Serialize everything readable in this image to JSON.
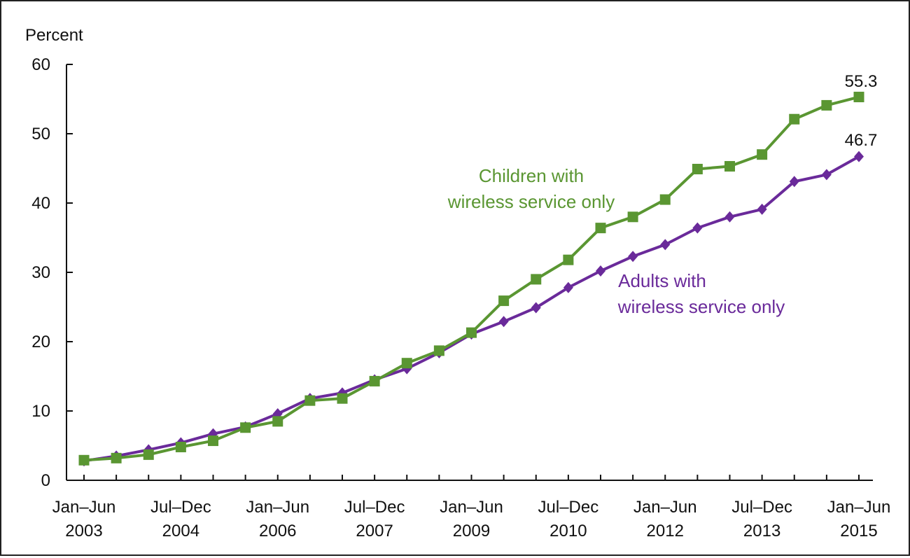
{
  "chart_data": {
    "type": "line",
    "ylabel": "Percent",
    "ylim": [
      0,
      60
    ],
    "yticks": [
      "0",
      "10",
      "20",
      "30",
      "40",
      "50",
      "60"
    ],
    "x_periods": [
      "Jan–Jun 2003",
      "Jul–Dec 2003",
      "Jan–Jun 2004",
      "Jul–Dec 2004",
      "Jan–Jun 2005",
      "Jul–Dec 2005",
      "Jan–Jun 2006",
      "Jul–Dec 2006",
      "Jan–Jun 2007",
      "Jul–Dec 2007",
      "Jan–Jun 2008",
      "Jul–Dec 2008",
      "Jan–Jun 2009",
      "Jul–Dec 2009",
      "Jan–Jun 2010",
      "Jul–Dec 2010",
      "Jan–Jun 2011",
      "Jul–Dec 2011",
      "Jan–Jun 2012",
      "Jul–Dec 2012",
      "Jan–Jun 2013",
      "Jul–Dec 2013",
      "Jan–Jun 2014",
      "Jul–Dec 2014",
      "Jan–Jun 2015"
    ],
    "x_tick_labels": [
      {
        "index": 0,
        "line1": "Jan–Jun",
        "line2": "2003"
      },
      {
        "index": 3,
        "line1": "Jul–Dec",
        "line2": "2004"
      },
      {
        "index": 6,
        "line1": "Jan–Jun",
        "line2": "2006"
      },
      {
        "index": 9,
        "line1": "Jul–Dec",
        "line2": "2007"
      },
      {
        "index": 12,
        "line1": "Jan–Jun",
        "line2": "2009"
      },
      {
        "index": 15,
        "line1": "Jul–Dec",
        "line2": "2010"
      },
      {
        "index": 18,
        "line1": "Jan–Jun",
        "line2": "2012"
      },
      {
        "index": 21,
        "line1": "Jul–Dec",
        "line2": "2013"
      },
      {
        "index": 24,
        "line1": "Jan–Jun",
        "line2": "2015"
      }
    ],
    "series": [
      {
        "name": "Children with wireless service only",
        "label_lines": [
          "Children with",
          "wireless service only"
        ],
        "color": "#5a9632",
        "marker": "square",
        "values": [
          2.9,
          3.2,
          3.7,
          4.8,
          5.7,
          7.6,
          8.5,
          11.5,
          11.8,
          14.3,
          16.9,
          18.7,
          21.3,
          25.9,
          29.0,
          31.8,
          36.4,
          38.0,
          40.5,
          44.9,
          45.3,
          47.0,
          52.1,
          54.1,
          55.3
        ],
        "end_label": "55.3"
      },
      {
        "name": "Adults with wireless service only",
        "label_lines": [
          "Adults with",
          "wireless service only"
        ],
        "color": "#6a2a9a",
        "marker": "diamond",
        "values": [
          2.8,
          3.5,
          4.4,
          5.4,
          6.7,
          7.7,
          9.6,
          11.8,
          12.6,
          14.5,
          16.1,
          18.4,
          21.1,
          22.9,
          24.9,
          27.8,
          30.2,
          32.3,
          34.0,
          36.4,
          38.0,
          39.1,
          43.1,
          44.1,
          46.7
        ],
        "end_label": "46.7"
      }
    ]
  }
}
